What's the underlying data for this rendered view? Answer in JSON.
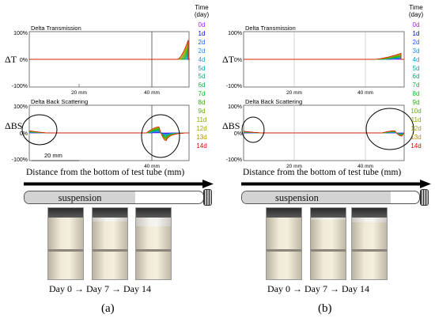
{
  "chart_data": [
    {
      "panel": "(a)",
      "type": "line",
      "x_ticks": [
        "20 mm",
        "40 mm"
      ],
      "time_header": [
        "Time",
        "(day)"
      ],
      "days": [
        "0d",
        "1d",
        "2d",
        "2d",
        "4d",
        "5d",
        "5d",
        "6d",
        "7d",
        "8d",
        "9d",
        "11d",
        "12d",
        "13d",
        "14d"
      ],
      "day_colors": [
        "#a020f0",
        "#0000cd",
        "#1e5aff",
        "#1e90ff",
        "#1ea0c8",
        "#10a0a0",
        "#10a878",
        "#10b050",
        "#10b820",
        "#30b010",
        "#60b000",
        "#80a800",
        "#a0a000",
        "#b09000",
        "#e00000"
      ],
      "transmission": {
        "title": "Delta Transmission",
        "ylabel": "ΔT",
        "y_ticks": [
          "100%",
          "0%",
          "-100%"
        ],
        "ylim": [
          -100,
          100
        ],
        "peak_start_mm": 47,
        "peak_end_mm": 55,
        "peak_max_percent": [
          0,
          5,
          10,
          15,
          20,
          25,
          30,
          35,
          40,
          45,
          50,
          55,
          60,
          65,
          70
        ]
      },
      "backscattering": {
        "title": "Delta Back Scattering",
        "ylabel": "ΔBS",
        "y_ticks": [
          "100%",
          "0%",
          "-100%"
        ],
        "ylim": [
          -100,
          100
        ],
        "bottom_max_percent": 8,
        "top_max_percent": 22,
        "top_min_percent": -28
      },
      "scale_bar": "20 mm",
      "x_axis_label": "Distance from the bottom of test tube (mm)",
      "tube_label": "suspension",
      "timeline": "Day 0 → Day 7 → Day 14",
      "photo_days": [
        0,
        7,
        14
      ]
    },
    {
      "panel": "(b)",
      "type": "line",
      "x_ticks": [
        "20 mm",
        "40 mm"
      ],
      "time_header": [
        "Time",
        "(day)"
      ],
      "days": [
        "0d",
        "1d",
        "2d",
        "3d",
        "4d",
        "5d",
        "6d",
        "7d",
        "8d",
        "9d",
        "10d",
        "11d",
        "12d",
        "13d",
        "14d"
      ],
      "day_colors": [
        "#a020f0",
        "#0000cd",
        "#1e5aff",
        "#1e90ff",
        "#1ea0c8",
        "#10a0a0",
        "#10a878",
        "#10b050",
        "#10b820",
        "#30b010",
        "#60b000",
        "#80a800",
        "#a0a000",
        "#b09000",
        "#e00000"
      ],
      "transmission": {
        "title": "Delta Transmission",
        "ylabel": "ΔT",
        "y_ticks": [
          "100%",
          "0%",
          "-100%"
        ],
        "ylim": [
          -100,
          100
        ],
        "peak_start_mm": 42,
        "peak_end_mm": 50,
        "peak_max_percent": [
          0,
          2,
          3,
          5,
          6,
          8,
          9,
          11,
          12,
          14,
          15,
          17,
          18,
          20,
          22
        ]
      },
      "backscattering": {
        "title": "Delta Back Scattering",
        "ylabel": "ΔBS",
        "y_ticks": [
          "100%",
          "0%",
          "-100%"
        ],
        "ylim": [
          -100,
          100
        ],
        "bottom_max_percent": 6,
        "top_max_percent": 8,
        "top_min_percent": -12
      },
      "x_axis_label": "Distance from the bottom of test tube (mm)",
      "tube_label": "suspension",
      "timeline": "Day 0 → Day 7 → Day 14",
      "photo_days": [
        0,
        7,
        14
      ]
    }
  ],
  "captions": {
    "a": "(a)",
    "b": "(b)"
  }
}
